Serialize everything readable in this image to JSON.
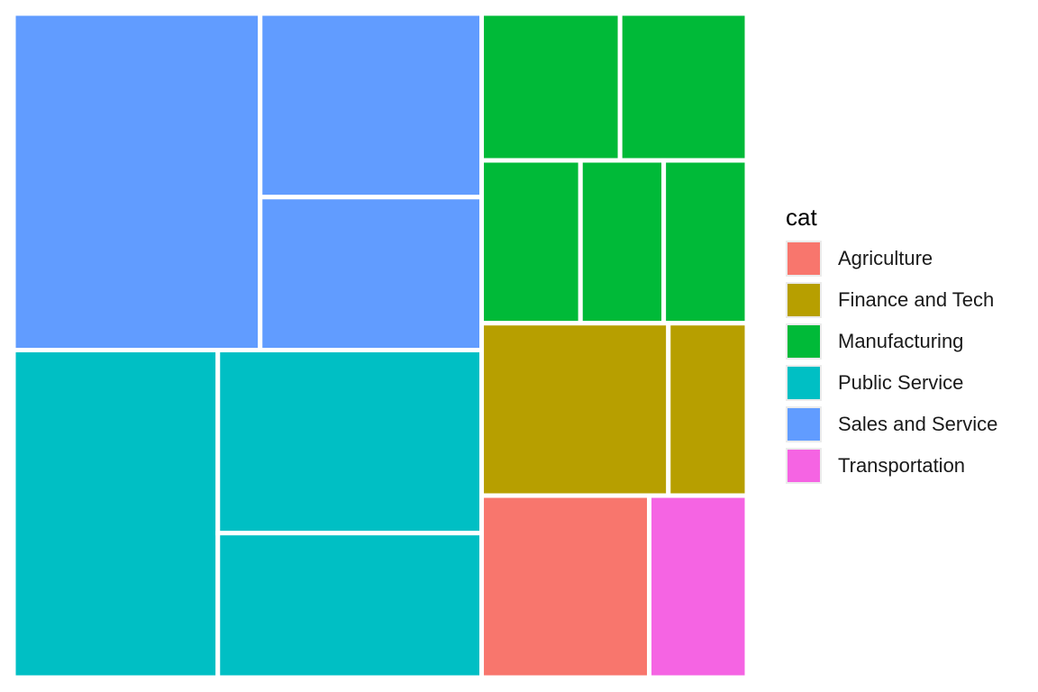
{
  "chart_data": {
    "type": "treemap",
    "legend": {
      "title": "cat",
      "position": "right",
      "items": [
        {
          "label": "Agriculture",
          "color": "#F8766D"
        },
        {
          "label": "Finance and Tech",
          "color": "#B79F00"
        },
        {
          "label": "Manufacturing",
          "color": "#00BA38"
        },
        {
          "label": "Public Service",
          "color": "#00BFC4"
        },
        {
          "label": "Sales and Service",
          "color": "#619CFF"
        },
        {
          "label": "Transportation",
          "color": "#F564E3"
        }
      ]
    },
    "groups": [
      {
        "category": "Public Service",
        "tiles": [
          {
            "value": 7.9
          },
          {
            "value": 4.5
          },
          {
            "value": 5.7
          }
        ]
      },
      {
        "category": "Sales and Service",
        "tiles": [
          {
            "value": 9.8
          },
          {
            "value": 4.0
          },
          {
            "value": 4.8
          }
        ]
      },
      {
        "category": "Agriculture",
        "tiles": [
          {
            "value": 3.6
          }
        ]
      },
      {
        "category": "Transportation",
        "tiles": [
          {
            "value": 2.1
          }
        ]
      },
      {
        "category": "Finance and Tech",
        "tiles": [
          {
            "value": 3.8
          },
          {
            "value": 1.6
          }
        ]
      },
      {
        "category": "Manufacturing",
        "tiles": [
          {
            "value": 1.9
          },
          {
            "value": 1.6
          },
          {
            "value": 1.6
          },
          {
            "value": 2.4
          },
          {
            "value": 2.2
          }
        ]
      }
    ]
  }
}
